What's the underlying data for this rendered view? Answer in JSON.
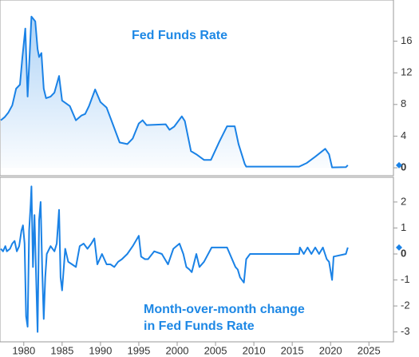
{
  "chart_data": [
    {
      "type": "area",
      "title": [
        "Fed Funds Rate"
      ],
      "color": "#1a82e6",
      "x": [
        1977.0,
        1977.5,
        1978.0,
        1978.5,
        1979.0,
        1979.5,
        1979.8,
        1980.2,
        1980.5,
        1980.8,
        1981.0,
        1981.5,
        1981.8,
        1982.0,
        1982.3,
        1982.6,
        1982.9,
        1983.5,
        1984.0,
        1984.6,
        1985.0,
        1986.0,
        1986.8,
        1987.5,
        1988.0,
        1988.5,
        1989.3,
        1990.0,
        1990.8,
        1991.5,
        1992.5,
        1993.5,
        1994.2,
        1995.0,
        1995.5,
        1996.0,
        1998.5,
        1999.0,
        1999.6,
        2000.6,
        2001.0,
        2001.8,
        2002.5,
        2003.5,
        2004.4,
        2005.5,
        2006.5,
        2007.5,
        2008.0,
        2008.8,
        2009.0,
        2015.9,
        2016.9,
        2018.0,
        2019.3,
        2019.8,
        2020.2,
        2022.0,
        2022.25
      ],
      "values": [
        6.0,
        6.4,
        7.0,
        7.9,
        10.0,
        10.5,
        13.8,
        17.6,
        9.0,
        15.0,
        19.1,
        18.5,
        15.0,
        14.0,
        14.5,
        10.0,
        8.8,
        9.0,
        9.5,
        11.6,
        8.5,
        7.8,
        6.0,
        6.6,
        6.8,
        7.8,
        9.9,
        8.3,
        7.6,
        5.8,
        3.2,
        3.0,
        3.7,
        5.6,
        6.0,
        5.4,
        5.5,
        4.8,
        5.2,
        6.5,
        5.9,
        2.1,
        1.7,
        1.0,
        1.0,
        3.3,
        5.25,
        5.25,
        3.0,
        0.5,
        0.15,
        0.15,
        0.6,
        1.4,
        2.4,
        1.7,
        0.05,
        0.08,
        0.33
      ],
      "xlim": [
        1976.9,
        2028.2
      ],
      "ylim": [
        -1,
        21.2
      ],
      "yticks": [
        0,
        4,
        8,
        12,
        16
      ]
    },
    {
      "type": "line",
      "title": [
        "Month-over-month change",
        "in Fed Funds Rate"
      ],
      "color": "#1a82e6",
      "x": [
        1977,
        1977.3,
        1977.6,
        1977.8,
        1978.2,
        1978.5,
        1978.8,
        1979.1,
        1979.4,
        1979.7,
        1979.9,
        1980.1,
        1980.3,
        1980.5,
        1980.7,
        1980.9,
        1981.0,
        1981.2,
        1981.4,
        1981.6,
        1981.8,
        1982.0,
        1982.2,
        1982.4,
        1982.6,
        1982.8,
        1983.0,
        1983.5,
        1984.0,
        1984.3,
        1984.6,
        1984.8,
        1985.0,
        1985.4,
        1985.8,
        1986.3,
        1986.8,
        1987.3,
        1987.8,
        1988.3,
        1988.8,
        1989.2,
        1989.6,
        1990.2,
        1990.8,
        1991.3,
        1991.8,
        1992.3,
        1992.8,
        1993.5,
        1994.2,
        1994.8,
        1995.0,
        1995.3,
        1995.8,
        1996.2,
        1997.0,
        1998.0,
        1998.8,
        1999.5,
        2000.3,
        2000.8,
        2001.2,
        2001.6,
        2001.9,
        2002.5,
        2002.9,
        2003.5,
        2004.5,
        2005.5,
        2006.5,
        2007.6,
        2007.9,
        2008.2,
        2008.7,
        2009.0,
        2009.5,
        2015.9,
        2016.0,
        2016.5,
        2017.0,
        2017.5,
        2018.0,
        2018.5,
        2019.0,
        2019.5,
        2019.8,
        2020.2,
        2020.4,
        2022.0,
        2022.25
      ],
      "values": [
        0.2,
        0.1,
        0.3,
        0.1,
        0.2,
        0.4,
        0.5,
        0.1,
        0.3,
        0.9,
        1.1,
        0.4,
        -2.4,
        -2.8,
        0.9,
        1.9,
        2.6,
        -0.5,
        1.5,
        -0.8,
        -3.0,
        1.3,
        2.0,
        -0.6,
        -2.5,
        -0.9,
        0.0,
        0.3,
        0.1,
        0.4,
        1.7,
        -0.9,
        -1.4,
        0.2,
        -0.3,
        -0.4,
        -0.5,
        0.3,
        0.4,
        0.2,
        0.4,
        0.6,
        -0.4,
        0.0,
        -0.4,
        -0.4,
        -0.5,
        -0.3,
        -0.2,
        0.0,
        0.3,
        0.6,
        0.7,
        -0.1,
        -0.2,
        -0.2,
        0.1,
        0.0,
        -0.4,
        0.2,
        0.4,
        0.0,
        -0.5,
        -0.6,
        -0.7,
        0.0,
        -0.5,
        -0.3,
        0.25,
        0.25,
        0.25,
        -0.5,
        -0.6,
        -0.9,
        -1.1,
        -0.2,
        0.0,
        0.0,
        0.25,
        0.0,
        0.25,
        0.0,
        0.25,
        0.0,
        0.25,
        -0.2,
        -0.3,
        -1.0,
        -0.1,
        0.0,
        0.25
      ],
      "xlim": [
        1976.9,
        2028.2
      ],
      "ylim": [
        -3.38,
        2.95
      ],
      "yticks": [
        -3,
        -2,
        -1,
        0,
        1,
        2
      ],
      "xticks": [
        1980,
        1985,
        1990,
        1995,
        2000,
        2005,
        2010,
        2015,
        2020,
        2025
      ]
    }
  ]
}
